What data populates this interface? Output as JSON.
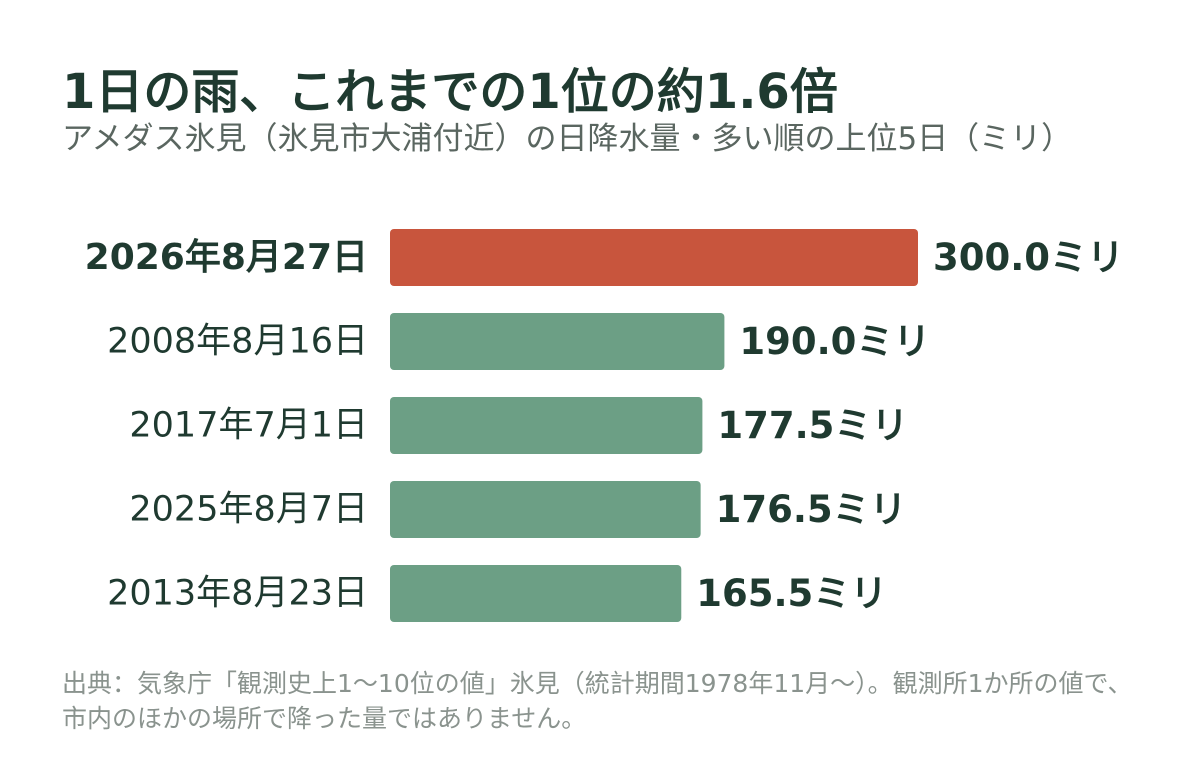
{
  "header": {
    "title": "1日の雨、これまでの1位の約1.6倍",
    "subtitle": "アメダス氷見（氷見市大浦付近）の日降水量・多い順の上位5日（ミリ）"
  },
  "footer": {
    "source": "出典：気象庁「観測史上1〜10位の値」氷見（統計期間1978年11月〜）。観測所1か所の値で、市内のほかの場所で降った量ではありません。"
  },
  "colors": {
    "highlight": "#c8553d",
    "normal": "#6c9f85",
    "text": "#1f3a30",
    "muted": "#8a938e"
  },
  "chart_data": {
    "type": "bar",
    "orientation": "horizontal",
    "title": "1日の雨、これまでの1位の約1.6倍",
    "subtitle": "アメダス氷見（氷見市大浦付近）の日降水量・多い順の上位5日（ミリ）",
    "unit": "ミリ",
    "categories": [
      "2026年8月27日",
      "2008年8月16日",
      "2017年7月1日",
      "2025年8月7日",
      "2013年8月23日"
    ],
    "values": [
      300.0,
      190.0,
      177.5,
      176.5,
      165.5
    ],
    "value_labels": [
      "300.0ミリ",
      "190.0ミリ",
      "177.5ミリ",
      "176.5ミリ",
      "165.5ミリ"
    ],
    "highlight_index": 0,
    "xlim": [
      0,
      300
    ],
    "grid": false
  }
}
